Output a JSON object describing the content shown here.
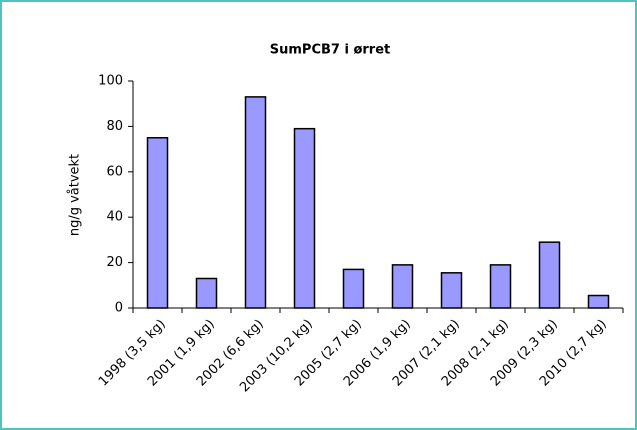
{
  "chart_data": {
    "type": "bar",
    "title": "SumPCB7 i ørret",
    "y_label": "ng/g våtvekt",
    "categories": [
      "1998 (3,5 kg)",
      "2001 (1,9 kg)",
      "2002 (6,6 kg)",
      "2003 (10,2 kg)",
      "2005 (2,7 kg)",
      "2006 (1,9 kg)",
      "2007 (2,1 kg)",
      "2008 (2,1 kg)",
      "2009 (2,3 kg)",
      "2010 (2,7 kg)"
    ],
    "values": [
      75,
      13,
      93,
      79,
      17,
      19,
      15.5,
      19,
      29,
      5.5
    ],
    "color": "#9999ff",
    "ylim": [
      0,
      100
    ],
    "yticks": [
      0,
      20,
      40,
      60,
      80,
      100
    ],
    "grid": false
  }
}
